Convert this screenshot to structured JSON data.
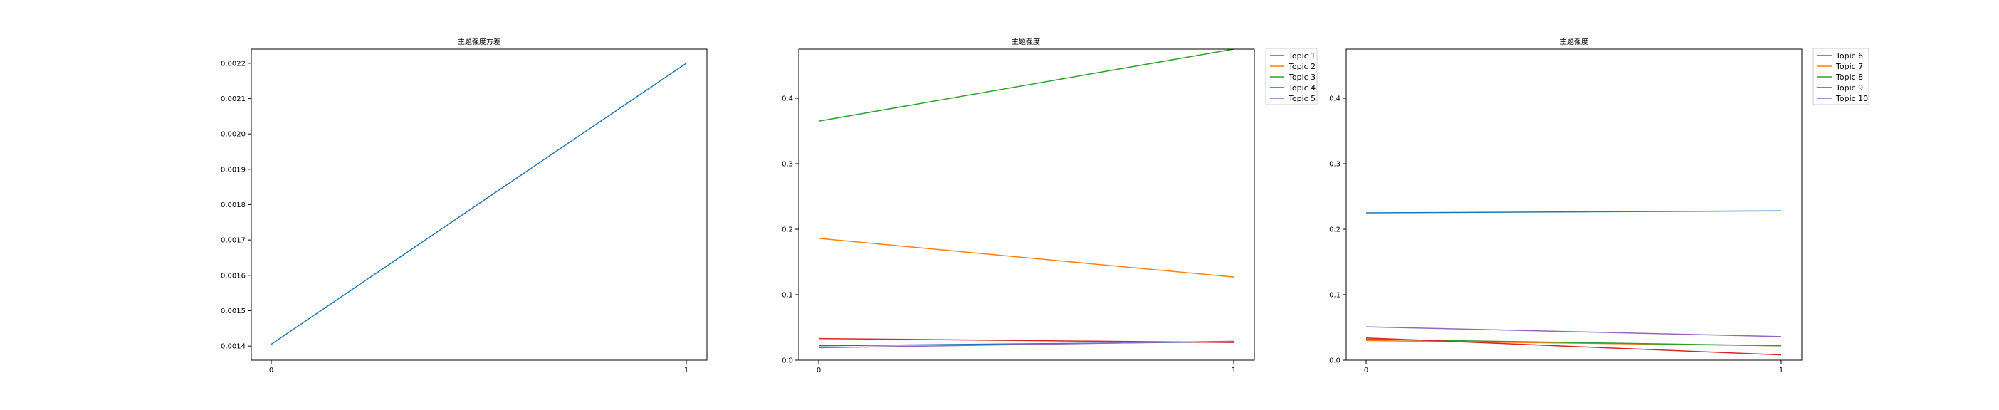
{
  "chart_data": [
    {
      "type": "line",
      "title": "主题强度方差",
      "xlabel": "",
      "ylabel": "",
      "x": [
        0,
        1
      ],
      "x_ticks": [
        "0",
        "1"
      ],
      "ylim": [
        0.00136,
        0.00224
      ],
      "y_ticks": [
        "0.0014",
        "0.0015",
        "0.0016",
        "0.0017",
        "0.0018",
        "0.0019",
        "0.0020",
        "0.0021",
        "0.0022"
      ],
      "y_tick_values": [
        0.0014,
        0.0015,
        0.0016,
        0.0017,
        0.0018,
        0.0019,
        0.002,
        0.0021,
        0.0022
      ],
      "grid": false,
      "legend": "none",
      "series": [
        {
          "color": "#1f77b4",
          "values": [
            0.001405,
            0.0022
          ]
        }
      ]
    },
    {
      "type": "line",
      "title": "主题强度",
      "xlabel": "",
      "ylabel": "",
      "x": [
        0,
        1
      ],
      "x_ticks": [
        "0",
        "1"
      ],
      "ylim": [
        0,
        0.475
      ],
      "y_ticks": [
        "0.0",
        "0.1",
        "0.2",
        "0.3",
        "0.4"
      ],
      "y_tick_values": [
        0,
        0.1,
        0.2,
        0.3,
        0.4
      ],
      "grid": false,
      "legend": "outside-right-top",
      "series": [
        {
          "name": "Topic 1",
          "color": "#1f77b4",
          "values": [
            0.022,
            0.028
          ]
        },
        {
          "name": "Topic 2",
          "color": "#ff7f0e",
          "values": [
            0.186,
            0.127
          ]
        },
        {
          "name": "Topic 3",
          "color": "#2ca02c",
          "values": [
            0.365,
            0.475
          ]
        },
        {
          "name": "Topic 4",
          "color": "#d62728",
          "values": [
            0.033,
            0.027
          ]
        },
        {
          "name": "Topic 5",
          "color": "#9467bd",
          "values": [
            0.019,
            0.029
          ]
        }
      ]
    },
    {
      "type": "line",
      "title": "主题强度",
      "xlabel": "",
      "ylabel": "",
      "x": [
        0,
        1
      ],
      "x_ticks": [
        "0",
        "1"
      ],
      "ylim": [
        0,
        0.475
      ],
      "y_ticks": [
        "0.0",
        "0.1",
        "0.2",
        "0.3",
        "0.4"
      ],
      "y_tick_values": [
        0,
        0.1,
        0.2,
        0.3,
        0.4
      ],
      "grid": false,
      "legend": "outside-right-top",
      "series": [
        {
          "name": "Topic 6",
          "color": "#1f77b4",
          "values": [
            0.225,
            0.228
          ]
        },
        {
          "name": "Topic 7",
          "color": "#ff7f0e",
          "values": [
            0.03,
            0.022
          ]
        },
        {
          "name": "Topic 8",
          "color": "#2ca02c",
          "values": [
            0.032,
            0.022
          ]
        },
        {
          "name": "Topic 9",
          "color": "#d62728",
          "values": [
            0.034,
            0.008
          ]
        },
        {
          "name": "Topic 10",
          "color": "#9467bd",
          "values": [
            0.051,
            0.036
          ]
        }
      ]
    }
  ]
}
